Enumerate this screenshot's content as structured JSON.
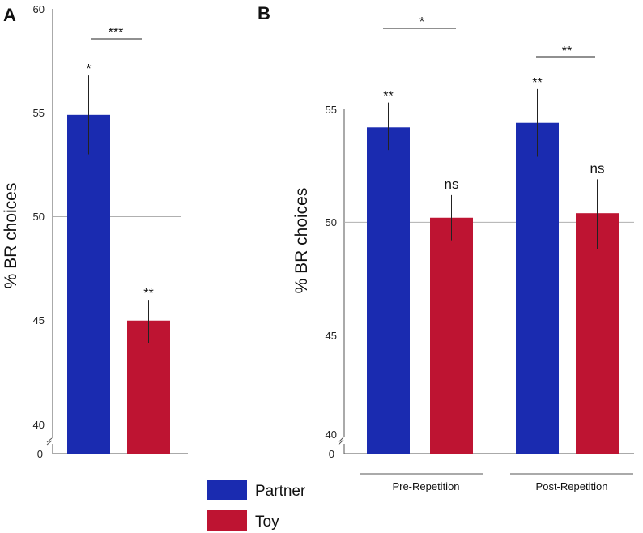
{
  "colors": {
    "partner": "#1a2bb0",
    "toy": "#be1432"
  },
  "legend": [
    {
      "name": "Partner",
      "color": "#1a2bb0"
    },
    {
      "name": "Toy",
      "color": "#be1432"
    }
  ],
  "chart_data": [
    {
      "panel": "A",
      "type": "bar",
      "ylabel": "% BR choices",
      "ylim": [
        40,
        60
      ],
      "yticks": [
        "60",
        "55",
        "50",
        "45",
        "40"
      ],
      "axis_break_label": "0",
      "reference_line": 50,
      "series": [
        {
          "name": "Partner",
          "value": 54.9,
          "err_low": 53.0,
          "err_high": 56.8,
          "sig": "*"
        },
        {
          "name": "Toy",
          "value": 45.0,
          "err_low": 43.9,
          "err_high": 46.0,
          "sig": "**"
        }
      ],
      "comparisons": [
        {
          "label": "***",
          "between": [
            "Partner",
            "Toy"
          ]
        }
      ]
    },
    {
      "panel": "B",
      "type": "bar",
      "ylabel": "% BR choices",
      "ylim": [
        40,
        55
      ],
      "yticks": [
        "55",
        "50",
        "45",
        "40"
      ],
      "axis_break_label": "0",
      "reference_line": 50,
      "categories": [
        "Pre-Repetition",
        "Post-Repetition"
      ],
      "series": [
        {
          "name": "Partner",
          "values": [
            54.2,
            54.4
          ],
          "err_low": [
            53.2,
            52.9
          ],
          "err_high": [
            55.3,
            55.9
          ],
          "sig": [
            "**",
            "**"
          ]
        },
        {
          "name": "Toy",
          "values": [
            50.2,
            50.4
          ],
          "err_low": [
            49.2,
            48.8
          ],
          "err_high": [
            51.2,
            51.9
          ],
          "sig": [
            "ns",
            "ns"
          ]
        }
      ],
      "comparisons": [
        {
          "label": "*",
          "between": [
            "Pre-Repetition Partner",
            "Pre-Repetition Toy"
          ]
        },
        {
          "label": "**",
          "between": [
            "Post-Repetition Partner",
            "Post-Repetition Toy"
          ]
        }
      ]
    }
  ]
}
